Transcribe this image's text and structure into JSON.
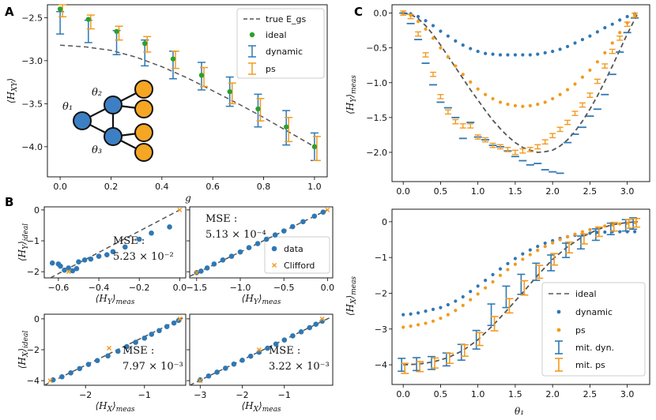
{
  "colors": {
    "blue": "#2f78b4",
    "orange": "#f39a1e",
    "green": "#2ca02c",
    "dashed": "#555555",
    "node_blue": "#3d7fc4",
    "node_orange": "#f5a623"
  },
  "chart_data": [
    {
      "id": "A",
      "panel_label": "A",
      "type": "scatter",
      "xlabel": "g",
      "ylabel": "⟨H_XY⟩",
      "xlim": [
        -0.05,
        1.05
      ],
      "ylim": [
        -4.35,
        -2.35
      ],
      "xticks": [
        0.0,
        0.2,
        0.4,
        0.6,
        0.8,
        1.0
      ],
      "xtick_labels": [
        "0.0",
        "0.2",
        "0.4",
        "0.6",
        "0.8",
        "1.0"
      ],
      "yticks": [
        -2.5,
        -3.0,
        -3.5,
        -4.0
      ],
      "ytick_labels": [
        "−2.5",
        "−3.0",
        "−3.5",
        "−4.0"
      ],
      "legend": [
        "true E_gs",
        "ideal",
        "dynamic",
        "ps"
      ],
      "graph_labels": [
        "θ₁",
        "θ₂",
        "θ₃"
      ],
      "true_x": [
        0.0,
        0.1,
        0.2,
        0.3,
        0.4,
        0.5,
        0.6,
        0.7,
        0.8,
        0.9,
        1.0
      ],
      "true_y": [
        -2.82,
        -2.84,
        -2.88,
        -2.96,
        -3.07,
        -3.2,
        -3.35,
        -3.5,
        -3.66,
        -3.83,
        -4.0
      ],
      "x": [
        0.0,
        0.111,
        0.222,
        0.333,
        0.444,
        0.556,
        0.667,
        0.778,
        0.889,
        1.0
      ],
      "ideal": [
        -2.4,
        -2.52,
        -2.66,
        -2.8,
        -2.98,
        -3.17,
        -3.36,
        -3.56,
        -3.77,
        -4.0
      ],
      "dynamic": {
        "mean": [
          -2.56,
          -2.66,
          -2.79,
          -2.91,
          -3.05,
          -3.18,
          -3.36,
          -3.58,
          -3.78,
          -4.0
        ],
        "err": [
          0.13,
          0.13,
          0.14,
          0.15,
          0.16,
          0.16,
          0.17,
          0.19,
          0.2,
          0.16
        ]
      },
      "ps": {
        "mean": [
          -2.42,
          -2.55,
          -2.68,
          -2.81,
          -2.99,
          -3.19,
          -3.38,
          -3.57,
          -3.8,
          -4.02
        ],
        "err": [
          0.07,
          0.08,
          0.08,
          0.09,
          0.1,
          0.11,
          0.12,
          0.13,
          0.14,
          0.14
        ]
      }
    },
    {
      "id": "B1",
      "panel_label": "B",
      "type": "scatter",
      "xlabel": "⟨H_Y⟩_meas",
      "ylabel": "⟨H_Y⟩_ideal",
      "xlim": [
        -0.67,
        0.03
      ],
      "ylim": [
        -2.2,
        0.1
      ],
      "xticks": [
        -0.6,
        -0.4,
        -0.2,
        0.0
      ],
      "xtick_labels": [
        "−0.6",
        "−0.4",
        "−0.2",
        "0.0"
      ],
      "yticks": [
        0,
        -1,
        -2
      ],
      "ytick_labels": [
        "0",
        "−1",
        "−2"
      ],
      "mse_label": "MSE :",
      "mse_value": "5.23 × 10⁻²",
      "fit": [
        [
          -0.64,
          -2.2
        ],
        [
          0.0,
          0.0
        ]
      ],
      "data_x": [
        -0.63,
        -0.6,
        -0.59,
        -0.57,
        -0.55,
        -0.53,
        -0.51,
        -0.5,
        -0.47,
        -0.44,
        -0.4,
        -0.36,
        -0.33,
        -0.27,
        -0.2,
        -0.14,
        -0.05
      ],
      "data_y": [
        -1.72,
        -1.75,
        -1.82,
        -1.95,
        -1.88,
        -1.97,
        -1.9,
        -1.68,
        -1.62,
        -1.59,
        -1.5,
        -1.45,
        -1.35,
        -1.2,
        -0.95,
        -0.75,
        -0.55
      ],
      "clifford_x": [
        0.0,
        -0.55
      ],
      "clifford_y": [
        0.0,
        -2.0
      ]
    },
    {
      "id": "B2",
      "type": "scatter",
      "xlabel": "⟨H_Y⟩_meas",
      "ylabel": "",
      "xlim": [
        -1.58,
        0.06
      ],
      "ylim": [
        -2.2,
        0.1
      ],
      "xticks": [
        -1.5,
        -1.0,
        -0.5,
        0.0
      ],
      "xtick_labels": [
        "−1.5",
        "−1.0",
        "−0.5",
        "0.0"
      ],
      "yticks": [
        0,
        -1,
        -2
      ],
      "mse_label": "MSE :",
      "mse_value": "5.13 × 10⁻⁴",
      "legend": [
        "data",
        "Clifford"
      ],
      "fit": [
        [
          -1.58,
          -2.15
        ],
        [
          0.0,
          0.0
        ]
      ],
      "data_x": [
        -1.5,
        -1.45,
        -1.38,
        -1.3,
        -1.2,
        -1.1,
        -1.0,
        -0.9,
        -0.8,
        -0.7,
        -0.6,
        -0.5,
        -0.4,
        -0.28,
        -0.15,
        -0.05
      ],
      "data_y": [
        -2.03,
        -1.98,
        -1.88,
        -1.75,
        -1.62,
        -1.5,
        -1.36,
        -1.22,
        -1.09,
        -0.95,
        -0.81,
        -0.68,
        -0.54,
        -0.38,
        -0.2,
        -0.07
      ],
      "clifford_x": [
        0.0,
        -1.5
      ],
      "clifford_y": [
        0.0,
        -2.03
      ]
    },
    {
      "id": "B3",
      "type": "scatter",
      "xlabel": "⟨H_X⟩_meas",
      "ylabel": "⟨H_X⟩_ideal",
      "xlim": [
        -2.7,
        -0.3
      ],
      "ylim": [
        -4.3,
        0.3
      ],
      "xticks": [
        -2,
        -1
      ],
      "xtick_labels": [
        "−2",
        "−1"
      ],
      "yticks": [
        0,
        -2,
        -4
      ],
      "ytick_labels": [
        "0",
        "−2",
        "−4"
      ],
      "mse_label": "MSE :",
      "mse_value": "7.97 × 10⁻³",
      "fit": [
        [
          -2.7,
          -4.3
        ],
        [
          -0.35,
          0.05
        ]
      ],
      "data_x": [
        -2.55,
        -2.4,
        -2.25,
        -2.1,
        -1.95,
        -1.8,
        -1.62,
        -1.45,
        -1.3,
        -1.15,
        -1.0,
        -0.88,
        -0.75,
        -0.62,
        -0.5,
        -0.42
      ],
      "data_y": [
        -3.95,
        -3.75,
        -3.5,
        -3.22,
        -2.95,
        -2.7,
        -2.4,
        -2.1,
        -1.8,
        -1.52,
        -1.25,
        -1.0,
        -0.76,
        -0.5,
        -0.27,
        -0.1
      ],
      "clifford_x": [
        -0.4,
        -2.6,
        -1.6
      ],
      "clifford_y": [
        0.0,
        -4.0,
        -1.9
      ]
    },
    {
      "id": "B4",
      "type": "scatter",
      "xlabel": "⟨H_X⟩_meas",
      "ylabel": "",
      "xlim": [
        -3.25,
        0.15
      ],
      "ylim": [
        -4.3,
        0.3
      ],
      "xticks": [
        -3,
        -2,
        -1
      ],
      "xtick_labels": [
        "−3",
        "−2",
        "−1"
      ],
      "yticks": [
        0,
        -2,
        -4
      ],
      "mse_label": "MSE :",
      "mse_value": "3.22 × 10⁻³",
      "fit": [
        [
          -3.25,
          -4.3
        ],
        [
          0.1,
          0.1
        ]
      ],
      "data_x": [
        -3.0,
        -2.8,
        -2.6,
        -2.4,
        -2.2,
        -2.0,
        -1.8,
        -1.6,
        -1.4,
        -1.2,
        -1.0,
        -0.8,
        -0.6,
        -0.4,
        -0.25,
        -0.1
      ],
      "data_y": [
        -3.95,
        -3.7,
        -3.45,
        -3.2,
        -2.93,
        -2.68,
        -2.42,
        -2.16,
        -1.9,
        -1.63,
        -1.37,
        -1.1,
        -0.84,
        -0.57,
        -0.35,
        -0.15
      ],
      "clifford_x": [
        -3.0,
        -0.1,
        -1.6
      ],
      "clifford_y": [
        -4.0,
        0.0,
        -2.0
      ]
    },
    {
      "id": "C1",
      "panel_label": "C",
      "type": "scatter",
      "xlabel": "",
      "ylabel": "⟨H_Y⟩_meas",
      "xlim": [
        -0.15,
        3.3
      ],
      "ylim": [
        -2.42,
        0.12
      ],
      "xticks": [
        0.0,
        0.5,
        1.0,
        1.5,
        2.0,
        2.5,
        3.0
      ],
      "xtick_labels": [
        "0.0",
        "0.5",
        "1.0",
        "1.5",
        "2.0",
        "2.5",
        "3.0"
      ],
      "yticks": [
        0.0,
        -0.5,
        -1.0,
        -1.5,
        -2.0
      ],
      "ytick_labels": [
        "0.0",
        "−0.5",
        "−1.0",
        "−1.5",
        "−2.0"
      ],
      "x": [
        0.0,
        0.1,
        0.2,
        0.3,
        0.4,
        0.5,
        0.6,
        0.7,
        0.8,
        0.9,
        1.0,
        1.1,
        1.2,
        1.3,
        1.4,
        1.5,
        1.6,
        1.7,
        1.8,
        1.9,
        2.0,
        2.1,
        2.2,
        2.3,
        2.4,
        2.5,
        2.6,
        2.7,
        2.8,
        2.9,
        3.0,
        3.1
      ],
      "ideal": [
        0.0,
        -0.01,
        -0.05,
        -0.11,
        -0.18,
        -0.26,
        -0.33,
        -0.4,
        -0.46,
        -0.51,
        -0.55,
        -0.58,
        -0.59,
        -0.6,
        -0.6,
        -0.6,
        -0.6,
        -0.6,
        -0.59,
        -0.57,
        -0.55,
        -0.52,
        -0.48,
        -0.43,
        -0.38,
        -0.33,
        -0.27,
        -0.21,
        -0.16,
        -0.1,
        -0.05,
        -0.01
      ],
      "ps": [
        0.0,
        -0.03,
        -0.12,
        -0.23,
        -0.36,
        -0.5,
        -0.63,
        -0.76,
        -0.88,
        -0.99,
        -1.09,
        -1.17,
        -1.23,
        -1.28,
        -1.31,
        -1.33,
        -1.34,
        -1.33,
        -1.31,
        -1.28,
        -1.23,
        -1.17,
        -1.1,
        -1.02,
        -0.92,
        -0.82,
        -0.7,
        -0.57,
        -0.43,
        -0.28,
        -0.14,
        -0.03
      ],
      "true_x": [
        0.0,
        0.1,
        0.2,
        0.3,
        0.4,
        0.5,
        0.6,
        0.7,
        0.8,
        0.9,
        1.0,
        1.1,
        1.2,
        1.3,
        1.4,
        1.5,
        1.6,
        1.7,
        1.8,
        1.9,
        2.0,
        2.1,
        2.2,
        2.3,
        2.4,
        2.5,
        2.6,
        2.7,
        2.8,
        2.9,
        3.0,
        3.1,
        3.14
      ],
      "true_y": [
        0.0,
        -0.02,
        -0.08,
        -0.18,
        -0.31,
        -0.46,
        -0.62,
        -0.78,
        -0.94,
        -1.1,
        -1.25,
        -1.4,
        -1.54,
        -1.66,
        -1.77,
        -1.86,
        -1.93,
        -1.97,
        -2.0,
        -1.99,
        -1.97,
        -1.91,
        -1.82,
        -1.7,
        -1.55,
        -1.38,
        -1.19,
        -0.98,
        -0.76,
        -0.53,
        -0.3,
        -0.09,
        0.0
      ],
      "mit_dyn": [
        0.0,
        -0.15,
        -0.38,
        -0.72,
        -1.03,
        -1.28,
        -1.36,
        -1.5,
        -1.8,
        -1.57,
        -1.78,
        -1.82,
        -1.9,
        -1.92,
        -1.98,
        -2.06,
        -2.12,
        -2.18,
        -2.16,
        -2.25,
        -2.28,
        -2.3,
        -1.86,
        -1.74,
        -1.64,
        -1.48,
        -1.38,
        -1.17,
        -0.88,
        -0.56,
        -0.28,
        -0.07
      ],
      "mit_ps": [
        0.0,
        -0.05,
        -0.3,
        -0.6,
        -0.88,
        -1.2,
        -1.42,
        -1.56,
        -1.62,
        -1.62,
        -1.78,
        -1.82,
        -1.9,
        -1.92,
        -1.96,
        -2.0,
        -1.98,
        -1.96,
        -1.92,
        -1.85,
        -1.76,
        -1.67,
        -1.57,
        -1.44,
        -1.32,
        -1.18,
        -0.98,
        -0.76,
        -0.55,
        -0.36,
        -0.16,
        -0.03
      ],
      "mit_ps_err": 0.03
    },
    {
      "id": "C2",
      "type": "scatter",
      "xlabel": "θ₁",
      "ylabel": "⟨H_X⟩_meas",
      "xlim": [
        -0.15,
        3.3
      ],
      "ylim": [
        -4.55,
        0.35
      ],
      "xticks": [
        0.0,
        0.5,
        1.0,
        1.5,
        2.0,
        2.5,
        3.0
      ],
      "xtick_labels": [
        "0.0",
        "0.5",
        "1.0",
        "1.5",
        "2.0",
        "2.5",
        "3.0"
      ],
      "yticks": [
        0,
        -1,
        -2,
        -3,
        -4
      ],
      "ytick_labels": [
        "0",
        "−1",
        "−2",
        "−3",
        "−4"
      ],
      "legend": [
        "ideal",
        "dynamic",
        "ps",
        "mit. dyn.",
        "mit. ps"
      ],
      "dyn_x": [
        0.0,
        0.1,
        0.2,
        0.3,
        0.4,
        0.5,
        0.6,
        0.7,
        0.8,
        0.9,
        1.0,
        1.1,
        1.2,
        1.3,
        1.4,
        1.5,
        1.6,
        1.7,
        1.8,
        1.9,
        2.0,
        2.1,
        2.2,
        2.3,
        2.4,
        2.5,
        2.6,
        2.7,
        2.8,
        2.9,
        3.0,
        3.1
      ],
      "dynamic": [
        -2.6,
        -2.58,
        -2.55,
        -2.5,
        -2.45,
        -2.4,
        -2.32,
        -2.22,
        -2.1,
        -1.95,
        -1.8,
        -1.64,
        -1.48,
        -1.32,
        -1.17,
        -1.03,
        -0.9,
        -0.79,
        -0.69,
        -0.6,
        -0.53,
        -0.47,
        -0.42,
        -0.38,
        -0.35,
        -0.32,
        -0.3,
        -0.29,
        -0.28,
        -0.28,
        -0.28,
        -0.28
      ],
      "ps": [
        -2.95,
        -2.92,
        -2.88,
        -2.84,
        -2.78,
        -2.7,
        -2.6,
        -2.48,
        -2.34,
        -2.18,
        -2.02,
        -1.85,
        -1.68,
        -1.5,
        -1.34,
        -1.19,
        -1.05,
        -0.92,
        -0.8,
        -0.69,
        -0.59,
        -0.5,
        -0.42,
        -0.35,
        -0.28,
        -0.22,
        -0.17,
        -0.12,
        -0.09,
        -0.06,
        -0.04,
        -0.02
      ],
      "true_x": [
        0.0,
        0.2,
        0.4,
        0.6,
        0.8,
        1.0,
        1.2,
        1.4,
        1.6,
        1.8,
        2.0,
        2.2,
        2.4,
        2.6,
        2.8,
        3.0,
        3.14
      ],
      "true_y": [
        -4.0,
        -3.98,
        -3.92,
        -3.8,
        -3.6,
        -3.3,
        -2.9,
        -2.45,
        -1.98,
        -1.5,
        -1.05,
        -0.7,
        -0.42,
        -0.22,
        -0.08,
        -0.02,
        0.0
      ],
      "mit_x": [
        0.0,
        0.2,
        0.4,
        0.6,
        0.8,
        1.0,
        1.2,
        1.4,
        1.6,
        1.8,
        2.0,
        2.2,
        2.4,
        2.6,
        2.8,
        3.0,
        3.1
      ],
      "mit_dyn": {
        "mean": [
          -4.0,
          -3.98,
          -3.95,
          -3.85,
          -3.65,
          -3.3,
          -2.6,
          -2.1,
          -1.75,
          -1.4,
          -1.15,
          -0.8,
          -0.58,
          -0.36,
          -0.2,
          -0.1,
          -0.05
        ],
        "err": [
          0.18,
          0.18,
          0.18,
          0.18,
          0.22,
          0.26,
          0.3,
          0.3,
          0.28,
          0.24,
          0.22,
          0.2,
          0.18,
          0.16,
          0.16,
          0.16,
          0.16
        ]
      },
      "mit_ps": {
        "mean": [
          -4.1,
          -4.05,
          -3.95,
          -3.82,
          -3.6,
          -3.28,
          -2.85,
          -2.35,
          -1.85,
          -1.4,
          -1.05,
          -0.72,
          -0.48,
          -0.28,
          -0.14,
          -0.06,
          -0.03
        ],
        "err": [
          0.14,
          0.14,
          0.14,
          0.14,
          0.16,
          0.18,
          0.2,
          0.2,
          0.2,
          0.18,
          0.16,
          0.15,
          0.14,
          0.13,
          0.12,
          0.12,
          0.12
        ]
      }
    }
  ]
}
